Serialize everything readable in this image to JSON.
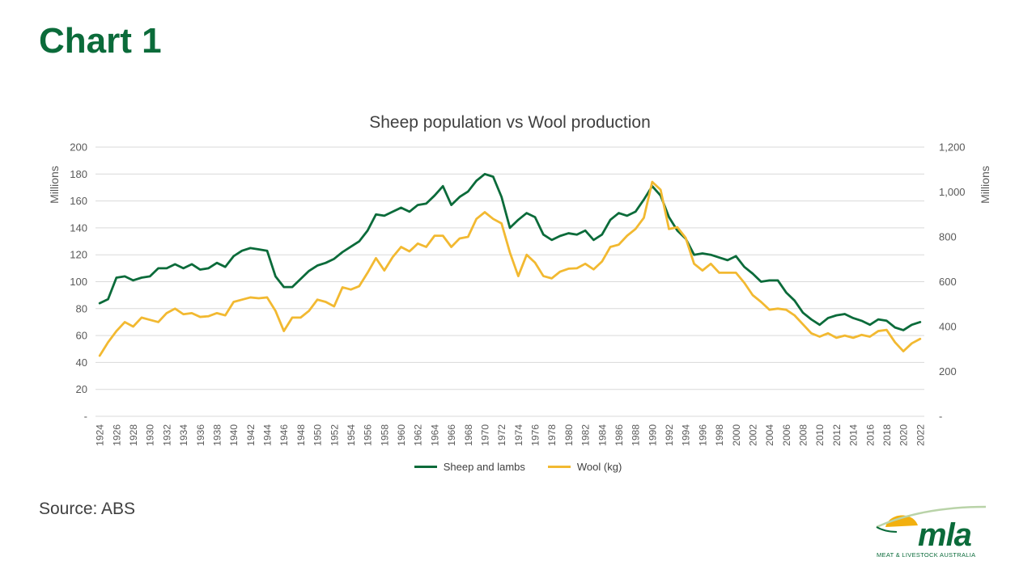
{
  "slide": {
    "title": "Chart 1",
    "source": "Source: ABS"
  },
  "logo": {
    "text": "mla",
    "tagline": "MEAT & LIVESTOCK AUSTRALIA",
    "colors": {
      "green": "#0b6b3a",
      "yellow": "#f2b00f",
      "arc": "#b9d3a8"
    }
  },
  "chart_data": {
    "type": "line",
    "title": "Sheep population vs Wool production",
    "ylabel_left": "Millions",
    "ylabel_right": "Millions",
    "ylim_left": [
      0,
      200
    ],
    "ylim_right": [
      0,
      1200
    ],
    "yticks_left": [
      "-",
      "20",
      "40",
      "60",
      "80",
      "100",
      "120",
      "140",
      "160",
      "180",
      "200"
    ],
    "yticks_right": [
      "-",
      "200",
      "400",
      "600",
      "800",
      "1,000",
      "1,200"
    ],
    "grid": true,
    "legend_position": "bottom",
    "x": [
      1924,
      1925,
      1926,
      1927,
      1928,
      1929,
      1930,
      1931,
      1932,
      1933,
      1934,
      1935,
      1936,
      1937,
      1938,
      1939,
      1940,
      1941,
      1942,
      1943,
      1944,
      1945,
      1946,
      1947,
      1948,
      1949,
      1950,
      1951,
      1952,
      1953,
      1954,
      1955,
      1956,
      1957,
      1958,
      1959,
      1960,
      1961,
      1962,
      1963,
      1964,
      1965,
      1966,
      1967,
      1968,
      1969,
      1970,
      1971,
      1972,
      1973,
      1974,
      1975,
      1976,
      1977,
      1978,
      1979,
      1980,
      1981,
      1982,
      1983,
      1984,
      1985,
      1986,
      1987,
      1988,
      1989,
      1990,
      1991,
      1992,
      1993,
      1994,
      1995,
      1996,
      1997,
      1998,
      1999,
      2000,
      2001,
      2002,
      2003,
      2004,
      2005,
      2006,
      2007,
      2008,
      2009,
      2010,
      2011,
      2012,
      2013,
      2014,
      2015,
      2016,
      2017,
      2018,
      2019,
      2020,
      2021,
      2022
    ],
    "series": [
      {
        "name": "Sheep and lambs",
        "axis": "left",
        "color": "#0b6b3a",
        "values": [
          84,
          87,
          103,
          104,
          101,
          103,
          104,
          110,
          110,
          113,
          110,
          113,
          109,
          110,
          114,
          111,
          119,
          123,
          125,
          124,
          123,
          104,
          96,
          96,
          102,
          108,
          112,
          114,
          117,
          122,
          126,
          130,
          138,
          150,
          149,
          152,
          155,
          152,
          157,
          158,
          164,
          171,
          157,
          163,
          167,
          175,
          180,
          178,
          163,
          140,
          146,
          151,
          148,
          135,
          131,
          134,
          136,
          135,
          138,
          131,
          135,
          146,
          151,
          149,
          152,
          161,
          171,
          164,
          148,
          138,
          132,
          120,
          121,
          120,
          118,
          116,
          119,
          111,
          106,
          100,
          101,
          101,
          92,
          86,
          77,
          72,
          68,
          73,
          75,
          76,
          73,
          71,
          68,
          72,
          71,
          66,
          64,
          68,
          70
        ]
      },
      {
        "name": "Wool (kg)",
        "axis": "right",
        "color": "#f2b931",
        "values": [
          270,
          330,
          380,
          420,
          400,
          440,
          430,
          420,
          460,
          480,
          455,
          460,
          443,
          446,
          460,
          450,
          510,
          520,
          530,
          526,
          530,
          470,
          380,
          440,
          440,
          470,
          520,
          510,
          490,
          575,
          565,
          580,
          640,
          705,
          650,
          710,
          755,
          735,
          770,
          755,
          805,
          805,
          755,
          793,
          800,
          880,
          910,
          880,
          860,
          730,
          625,
          720,
          685,
          625,
          615,
          645,
          658,
          660,
          680,
          655,
          690,
          755,
          765,
          805,
          835,
          885,
          1045,
          1010,
          835,
          843,
          795,
          680,
          650,
          680,
          640,
          640,
          640,
          595,
          540,
          510,
          475,
          480,
          475,
          450,
          410,
          370,
          355,
          370,
          350,
          360,
          350,
          363,
          355,
          380,
          385,
          330,
          290,
          325,
          345
        ]
      }
    ]
  }
}
